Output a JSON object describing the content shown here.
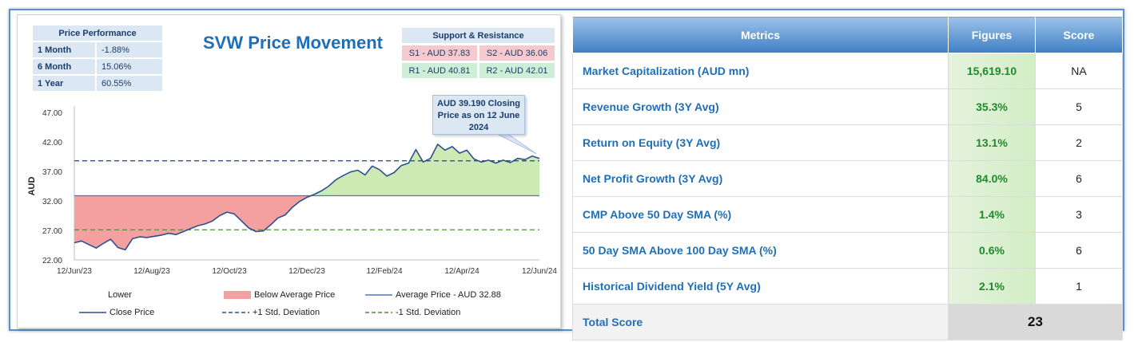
{
  "performance": {
    "header": "Price Performance",
    "rows": [
      {
        "label": "1 Month",
        "value": "-1.88%"
      },
      {
        "label": "6 Month",
        "value": "15.06%"
      },
      {
        "label": "1 Year",
        "value": "60.55%"
      }
    ]
  },
  "support_resistance": {
    "header": "Support & Resistance",
    "s1": "S1 - AUD 37.83",
    "s2": "S2 - AUD 36.06",
    "r1": "R1 - AUD 40.81",
    "r2": "R2 - AUD 42.01"
  },
  "callout": {
    "text": "AUD 39.190 Closing Price as on 12 June 2024"
  },
  "legend": {
    "lower": "Lower",
    "below_avg": "Below Average Price",
    "avg": "Average Price - AUD 32.88",
    "close": "Close Price",
    "plus_std": "+1 Std. Deviation",
    "minus_std": "-1 Std. Deviation"
  },
  "chart_data": {
    "type": "line",
    "title": "SVW Price Movement",
    "ylabel": "AUD",
    "ylim": [
      22,
      47
    ],
    "yticks": [
      "47.00",
      "42.00",
      "37.00",
      "32.00",
      "27.00",
      "22.00"
    ],
    "ytick_values": [
      47,
      42,
      37,
      32,
      27,
      22
    ],
    "xticks": [
      "12/Jun/23",
      "12/Aug/23",
      "12/Oct/23",
      "12/Dec/23",
      "12/Feb/24",
      "12/Apr/24",
      "12/Jun/24"
    ],
    "average": 32.88,
    "plus_std": 38.8,
    "minus_std": 27.1,
    "series": [
      {
        "name": "Close Price",
        "values": [
          24.9,
          25.2,
          24.6,
          24.0,
          24.8,
          25.5,
          24.1,
          23.7,
          25.6,
          25.9,
          25.8,
          26.0,
          26.2,
          26.5,
          26.3,
          26.8,
          27.3,
          27.8,
          28.1,
          28.6,
          29.5,
          30.1,
          29.8,
          28.6,
          27.4,
          26.8,
          26.9,
          27.9,
          29.1,
          29.6,
          30.9,
          31.9,
          32.6,
          33.1,
          33.7,
          34.5,
          35.6,
          36.3,
          36.9,
          37.2,
          36.4,
          37.9,
          37.3,
          36.2,
          36.8,
          38.0,
          38.4,
          40.7,
          38.6,
          39.2,
          41.6,
          40.6,
          41.2,
          40.1,
          40.6,
          39.1,
          38.6,
          38.9,
          38.4,
          38.9,
          38.5,
          39.2,
          39.0,
          39.6,
          39.19
        ]
      }
    ]
  },
  "metrics_table": {
    "headers": [
      "Metrics",
      "Figures",
      "Score"
    ],
    "rows": [
      {
        "metric": "Market Capitalization (AUD mn)",
        "figure": "15,619.10",
        "score": "NA"
      },
      {
        "metric": "Revenue Growth (3Y Avg)",
        "figure": "35.3%",
        "score": "5"
      },
      {
        "metric": "Return on Equity (3Y Avg)",
        "figure": "13.1%",
        "score": "2"
      },
      {
        "metric": "Net Profit Growth (3Y Avg)",
        "figure": "84.0%",
        "score": "6"
      },
      {
        "metric": "CMP Above 50 Day SMA (%)",
        "figure": "1.4%",
        "score": "3"
      },
      {
        "metric": "50 Day SMA Above 100 Day SMA (%)",
        "figure": "0.6%",
        "score": "6"
      },
      {
        "metric": "Historical Dividend Yield (5Y Avg)",
        "figure": "2.1%",
        "score": "1"
      }
    ],
    "total_label": "Total Score",
    "total_value": "23"
  },
  "colors": {
    "close_line": "#2f4f8f",
    "below_fill": "#f4a0a0",
    "above_fill": "#cdeab5",
    "avg_line": "#4a78c0",
    "plus_std": "#2f4f8f",
    "minus_std": "#4f8f2f"
  }
}
